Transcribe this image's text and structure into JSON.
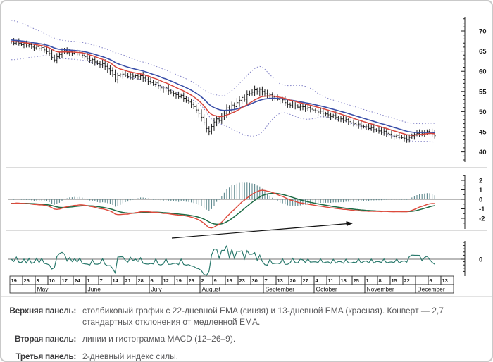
{
  "caption": {
    "rows": [
      {
        "label": "Верхняя панель:",
        "text": "столбиковый график с 22-дневной EMA (синяя) и 13-дневной EMA (красная). Конверт — 2,7 стандартных отклонения от медленной EMA."
      },
      {
        "label": "Вторая панель:",
        "text": "линии и гистограмма MACD (12–26–9)."
      },
      {
        "label": "Третья панель:",
        "text": "2-дневный индекс силы."
      }
    ]
  },
  "chart_data": {
    "type": "ohlc-multi-panel",
    "x_axis": {
      "week_labels": [
        "19",
        "26",
        "3",
        "10",
        "17",
        "24",
        "1",
        "7",
        "14",
        "21",
        "28",
        "6",
        "12",
        "19",
        "26",
        "2",
        "9",
        "16",
        "23",
        "30",
        "7",
        "13",
        "20",
        "27",
        "4",
        "11",
        "18",
        "25",
        "1",
        "8",
        "15",
        "22",
        "",
        "6",
        "13"
      ],
      "month_groups": [
        {
          "label": "",
          "span": 2
        },
        {
          "label": "May",
          "span": 4
        },
        {
          "label": "June",
          "span": 5
        },
        {
          "label": "July",
          "span": 4
        },
        {
          "label": "August",
          "span": 5
        },
        {
          "label": "September",
          "span": 4
        },
        {
          "label": "October",
          "span": 4
        },
        {
          "label": "November",
          "span": 4
        },
        {
          "label": "December",
          "span": 3
        }
      ]
    },
    "panels": [
      {
        "name": "price",
        "type": "ohlc-bar",
        "yticks": [
          40,
          45,
          50,
          55,
          60,
          65,
          70
        ],
        "ylim": [
          37.5,
          73.5
        ],
        "overlays": {
          "ema_fast_period": 13,
          "ema_slow_period": 22,
          "envelope_stddev": 2.7
        },
        "close": [
          67.3,
          67.0,
          67.4,
          66.9,
          66.6,
          66.8,
          66.3,
          66.6,
          66.0,
          65.8,
          66.1,
          65.6,
          65.9,
          65.3,
          64.9,
          64.4,
          63.4,
          62.8,
          63.6,
          64.2,
          64.8,
          65.1,
          64.6,
          64.9,
          64.5,
          64.7,
          64.3,
          64.6,
          64.0,
          63.6,
          63.2,
          62.7,
          62.9,
          62.3,
          61.9,
          61.6,
          61.9,
          61.2,
          60.6,
          60.1,
          59.2,
          57.9,
          58.9,
          59.1,
          59.3,
          59.0,
          58.7,
          59.1,
          58.8,
          58.9,
          58.6,
          58.9,
          58.3,
          57.9,
          57.5,
          57.2,
          56.8,
          57.1,
          56.4,
          55.9,
          55.6,
          55.9,
          55.2,
          54.8,
          54.5,
          54.2,
          53.7,
          54.0,
          53.3,
          52.8,
          52.4,
          51.8,
          51.2,
          50.4,
          49.6,
          48.6,
          47.2,
          45.8,
          45.1,
          46.3,
          47.4,
          48.2,
          47.8,
          48.9,
          49.6,
          50.9,
          50.4,
          51.6,
          51.2,
          52.2,
          52.8,
          53.5,
          53.1,
          54.2,
          54.4,
          54.8,
          55.4,
          54.9,
          55.5,
          55.0,
          54.4,
          53.9,
          54.2,
          53.6,
          53.3,
          53.0,
          52.6,
          52.9,
          52.2,
          51.8,
          51.6,
          51.9,
          51.4,
          51.1,
          51.3,
          51.2,
          50.8,
          51.0,
          50.6,
          50.4,
          50.2,
          49.9,
          50.1,
          49.6,
          49.4,
          49.2,
          48.8,
          49.0,
          48.5,
          48.4,
          48.2,
          47.8,
          48.0,
          47.5,
          47.2,
          47.0,
          46.7,
          46.9,
          46.4,
          46.3,
          46.2,
          45.8,
          46.0,
          45.5,
          45.4,
          45.2,
          44.9,
          45.1,
          44.6,
          44.4,
          44.2,
          43.9,
          44.1,
          43.6,
          43.5,
          43.4,
          43.1,
          43.6,
          44.0,
          44.3,
          44.6,
          44.9,
          44.5,
          44.8,
          45.1,
          44.9,
          44.5,
          44.0
        ]
      },
      {
        "name": "macd",
        "type": "line-and-histogram",
        "params": {
          "fast": 12,
          "slow": 26,
          "signal": 9
        },
        "yticks": [
          2,
          1,
          0,
          -1,
          -2
        ],
        "ylim": [
          -2.6,
          2.6
        ]
      },
      {
        "name": "force_index",
        "type": "line",
        "params": {
          "period": 2
        },
        "yticks": [
          0
        ]
      }
    ],
    "annotation_arrow": {
      "x1": 240,
      "y1": 334,
      "x2": 496,
      "y2": 313
    },
    "colors": {
      "bar": "#1a1a1a",
      "ema_fast": "#d8453c",
      "ema_slow": "#3a4fa8",
      "envelope": "#8080c6",
      "macd_line": "#dd4a3c",
      "macd_signal": "#1d6b45",
      "histogram": "#5c878c",
      "force": "#2b7a6d",
      "zero_line": "#444444",
      "separator": "#dcdcdc",
      "axis": "#222222",
      "arrow": "#111111"
    }
  }
}
